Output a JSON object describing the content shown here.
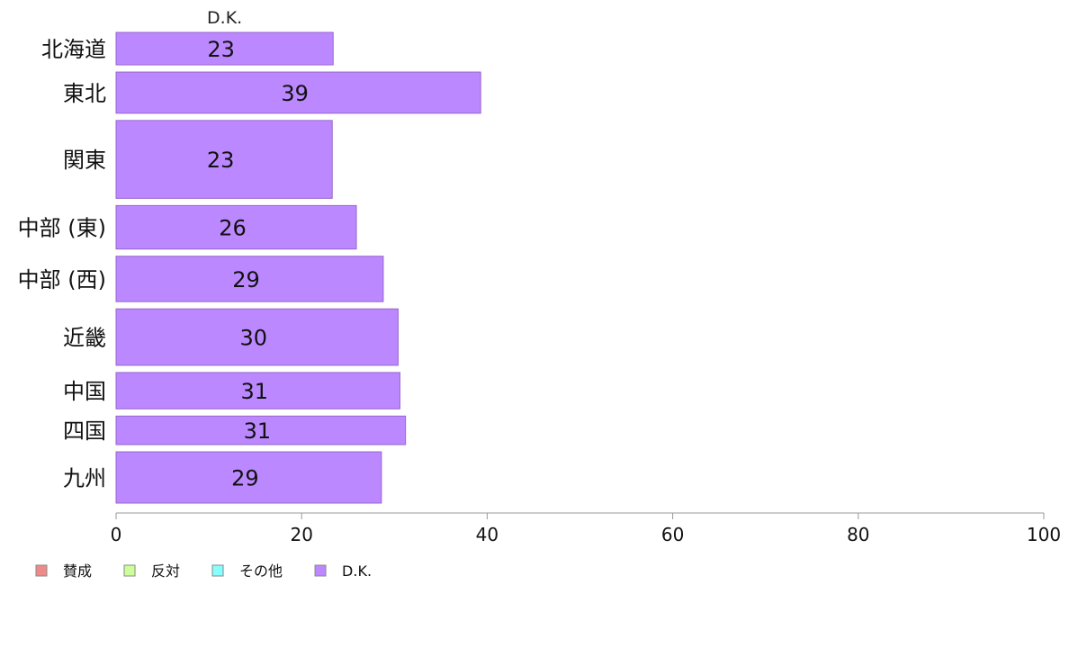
{
  "chart_data": {
    "type": "bar",
    "orientation": "horizontal",
    "stacked": true,
    "title": "D.K.",
    "categories": [
      "北海道",
      "東北",
      "関東",
      "中部 (東)",
      "中部 (西)",
      "近畿",
      "中国",
      "四国",
      "九州"
    ],
    "series": [
      {
        "name": "賛成",
        "color": "#f08a8a",
        "values": [
          0,
          0,
          0,
          0,
          0,
          0,
          0,
          0,
          0
        ]
      },
      {
        "name": "反対",
        "color": "#ccff99",
        "values": [
          0,
          0,
          0,
          0,
          0,
          0,
          0,
          0,
          0
        ]
      },
      {
        "name": "その他",
        "color": "#88ffff",
        "values": [
          0,
          0,
          0,
          0,
          0,
          0,
          0,
          0,
          0
        ]
      },
      {
        "name": "D.K.",
        "color": "#bb88ff",
        "values": [
          23.4,
          39.3,
          23.3,
          25.9,
          28.8,
          30.4,
          30.6,
          31.2,
          28.6
        ]
      }
    ],
    "data_labels": [
      "23",
      "39",
      "23",
      "26",
      "29",
      "30",
      "31",
      "31",
      "29"
    ],
    "relative_heights": [
      1.0,
      1.27,
      2.4,
      1.34,
      1.4,
      1.74,
      1.12,
      0.88,
      1.58
    ],
    "xlim": [
      0,
      100
    ],
    "xticks": [
      0,
      20,
      40,
      60,
      80,
      100
    ],
    "xlabel": "",
    "ylabel": "",
    "grid": false,
    "legend_position": "bottom-left"
  }
}
